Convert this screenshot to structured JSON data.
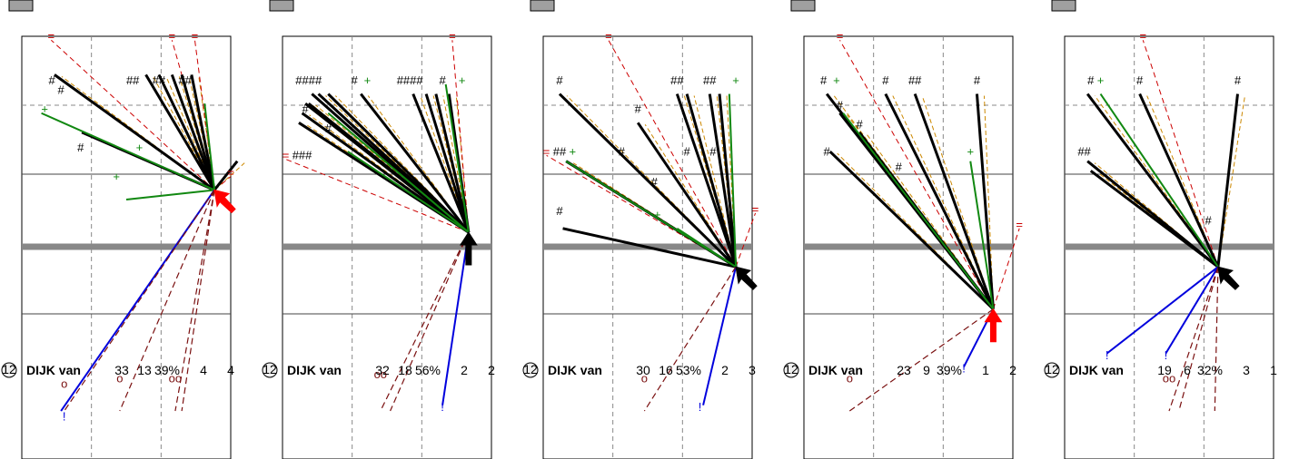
{
  "chart_data": [
    {
      "type": "other",
      "number_badge": "12",
      "name": "DIJK van",
      "stats": [
        "33",
        "13",
        "39%",
        "4",
        "4"
      ],
      "arrow_color": "#ff0000",
      "arrow_direction": "up-left",
      "labels": {
        "hash": [
          {
            "text": "#",
            "x": 0.46,
            "y": 0.95
          },
          {
            "text": "#",
            "x": 0.6,
            "y": 0.9
          },
          {
            "text": "##",
            "x": 1.7,
            "y": 0.95
          },
          {
            "text": "##",
            "x": 2.1,
            "y": 0.95
          },
          {
            "text": "##",
            "x": 2.5,
            "y": 0.95
          },
          {
            "text": "#",
            "x": 0.9,
            "y": 0.6
          }
        ],
        "plus": [
          {
            "text": "+",
            "x": 0.35,
            "y": 0.8,
            "dash": true
          },
          {
            "text": "+",
            "x": 1.8,
            "y": 0.6
          },
          {
            "text": "+",
            "x": 1.45,
            "y": 0.45
          }
        ],
        "equals": [
          {
            "text": "=",
            "x": 0.45,
            "y": 1.18
          },
          {
            "text": "=",
            "x": 2.3,
            "y": 1.18
          },
          {
            "text": "=",
            "x": 2.65,
            "y": 1.18
          },
          {
            "text": "=",
            "x": 3.2,
            "y": 0.47
          }
        ],
        "excl": [
          {
            "text": "!",
            "x": 0.65,
            "y": -0.8
          }
        ],
        "circ": [
          {
            "text": "o",
            "x": 0.65,
            "y": -0.63
          },
          {
            "text": "o",
            "x": 1.5,
            "y": -0.6
          },
          {
            "text": "oo",
            "x": 2.35,
            "y": -0.6
          }
        ]
      },
      "fan": {
        "ox": 2.95,
        "oy": 0.4,
        "lines": [
          [
            0.5,
            1.0
          ],
          [
            0.92,
            0.7
          ],
          [
            1.9,
            1.0
          ],
          [
            2.1,
            1.0
          ],
          [
            2.3,
            1.0
          ],
          [
            2.45,
            1.0
          ],
          [
            2.6,
            1.0
          ],
          [
            3.3,
            0.55
          ]
        ],
        "green": [
          [
            0.3,
            0.8
          ],
          [
            1.6,
            0.35
          ],
          [
            2.8,
            0.85
          ]
        ],
        "blue": [
          [
            0.6,
            -0.75
          ]
        ],
        "wine": [
          [
            0.65,
            -0.75
          ],
          [
            1.5,
            -0.75
          ],
          [
            2.35,
            -0.75
          ],
          [
            2.45,
            -0.75
          ]
        ]
      }
    },
    {
      "type": "other",
      "number_badge": "12",
      "name": "DIJK van",
      "stats": [
        "32",
        "18",
        "56%",
        "2",
        "2"
      ],
      "arrow_color": "#000000",
      "arrow_direction": "up",
      "labels": {
        "hash": [
          {
            "text": "####",
            "x": 0.4,
            "y": 0.95
          },
          {
            "text": "#",
            "x": 1.1,
            "y": 0.95
          },
          {
            "text": "####",
            "x": 1.95,
            "y": 0.95
          },
          {
            "text": "#",
            "x": 2.45,
            "y": 0.95
          },
          {
            "text": "#",
            "x": 0.35,
            "y": 0.8
          },
          {
            "text": "#",
            "x": 0.7,
            "y": 0.7
          },
          {
            "text": "###",
            "x": 0.3,
            "y": 0.56
          }
        ],
        "plus": [
          {
            "text": "+",
            "x": 1.3,
            "y": 0.95
          },
          {
            "text": "+",
            "x": 2.75,
            "y": 0.95
          }
        ],
        "equals": [
          {
            "text": "=",
            "x": 2.6,
            "y": 1.18
          },
          {
            "text": "=",
            "x": 0.05,
            "y": 0.56
          }
        ],
        "excl": [
          {
            "text": "!",
            "x": 2.45,
            "y": -0.75
          }
        ],
        "circ": [
          {
            "text": "oo",
            "x": 1.5,
            "y": -0.58
          }
        ]
      },
      "fan": {
        "ox": 2.85,
        "oy": 0.18,
        "lines": [
          [
            0.25,
            0.75
          ],
          [
            0.3,
            0.8
          ],
          [
            0.35,
            0.85
          ],
          [
            0.4,
            0.85
          ],
          [
            0.45,
            0.9
          ],
          [
            0.55,
            0.9
          ],
          [
            0.7,
            0.9
          ],
          [
            1.2,
            0.9
          ],
          [
            2.0,
            0.9
          ],
          [
            2.2,
            0.9
          ],
          [
            2.35,
            0.9
          ],
          [
            2.55,
            0.9
          ]
        ],
        "green": [
          [
            0.7,
            0.8
          ],
          [
            2.5,
            0.95
          ],
          [
            1.0,
            0.6
          ]
        ],
        "blue": [
          [
            2.45,
            -0.72
          ]
        ],
        "wine": [
          [
            1.5,
            -0.75
          ],
          [
            1.65,
            -0.75
          ]
        ]
      }
    },
    {
      "type": "other",
      "number_badge": "12",
      "name": "DIJK van",
      "stats": [
        "30",
        "16",
        "53%",
        "2",
        "3"
      ],
      "arrow_color": "#000000",
      "arrow_direction": "up-left",
      "labels": {
        "hash": [
          {
            "text": "#",
            "x": 0.25,
            "y": 0.95
          },
          {
            "text": "#",
            "x": 1.45,
            "y": 0.8
          },
          {
            "text": "##",
            "x": 2.05,
            "y": 0.95
          },
          {
            "text": "##",
            "x": 2.55,
            "y": 0.95
          },
          {
            "text": "##",
            "x": 0.25,
            "y": 0.58
          },
          {
            "text": "#",
            "x": 1.2,
            "y": 0.58
          },
          {
            "text": "#",
            "x": 2.2,
            "y": 0.58
          },
          {
            "text": "#",
            "x": 2.6,
            "y": 0.58
          },
          {
            "text": "#",
            "x": 1.7,
            "y": 0.42
          },
          {
            "text": "#",
            "x": 0.25,
            "y": 0.27
          }
        ],
        "plus": [
          {
            "text": "+",
            "x": 2.95,
            "y": 0.95
          },
          {
            "text": "+",
            "x": 0.45,
            "y": 0.58
          },
          {
            "text": "+",
            "x": 1.75,
            "y": 0.25
          }
        ],
        "equals": [
          {
            "text": "=",
            "x": 1.0,
            "y": 1.18
          },
          {
            "text": "=",
            "x": 0.05,
            "y": 0.58
          },
          {
            "text": "=",
            "x": 3.25,
            "y": 0.28
          }
        ],
        "excl": [
          {
            "text": "!",
            "x": 2.4,
            "y": -0.75
          }
        ],
        "circ": [
          {
            "text": "o",
            "x": 1.55,
            "y": -0.6
          }
        ]
      },
      "fan": {
        "ox": 2.95,
        "oy": 0.0,
        "lines": [
          [
            0.25,
            0.9
          ],
          [
            1.45,
            0.75
          ],
          [
            2.05,
            0.9
          ],
          [
            2.2,
            0.9
          ],
          [
            2.55,
            0.9
          ],
          [
            2.7,
            0.9
          ],
          [
            0.35,
            0.55
          ],
          [
            0.3,
            0.2
          ]
        ],
        "green": [
          [
            0.35,
            0.55
          ],
          [
            2.85,
            0.9
          ],
          [
            2.05,
            0.2
          ]
        ],
        "blue": [
          [
            2.45,
            -0.72
          ]
        ],
        "wine": [
          [
            1.55,
            -0.75
          ]
        ]
      }
    },
    {
      "type": "other",
      "number_badge": "12",
      "name": "DIJK van",
      "stats": [
        "23",
        "9",
        "39%",
        "1",
        "2"
      ],
      "arrow_color": "#ff0000",
      "arrow_direction": "up",
      "labels": {
        "hash": [
          {
            "text": "#",
            "x": 0.3,
            "y": 0.95
          },
          {
            "text": "#",
            "x": 1.25,
            "y": 0.95
          },
          {
            "text": "##",
            "x": 1.7,
            "y": 0.95
          },
          {
            "text": "#",
            "x": 2.65,
            "y": 0.95
          },
          {
            "text": "#",
            "x": 0.55,
            "y": 0.82
          },
          {
            "text": "#",
            "x": 0.85,
            "y": 0.72
          },
          {
            "text": "#",
            "x": 0.35,
            "y": 0.58
          },
          {
            "text": "#",
            "x": 1.45,
            "y": 0.5
          }
        ],
        "plus": [
          {
            "text": "+",
            "x": 0.5,
            "y": 0.95
          },
          {
            "text": "+",
            "x": 2.55,
            "y": 0.58
          }
        ],
        "equals": [
          {
            "text": "=",
            "x": 0.55,
            "y": 1.18
          },
          {
            "text": "=",
            "x": 3.3,
            "y": 0.2
          }
        ],
        "excl": [
          {
            "text": "!",
            "x": 2.45,
            "y": -0.55
          }
        ],
        "circ": [
          {
            "text": "o",
            "x": 0.7,
            "y": -0.6
          }
        ]
      },
      "fan": {
        "ox": 2.9,
        "oy": -0.22,
        "lines": [
          [
            0.35,
            0.9
          ],
          [
            0.55,
            0.8
          ],
          [
            0.85,
            0.7
          ],
          [
            1.25,
            0.9
          ],
          [
            1.7,
            0.9
          ],
          [
            2.65,
            0.9
          ],
          [
            0.4,
            0.6
          ]
        ],
        "green": [
          [
            0.6,
            0.8
          ],
          [
            2.55,
            0.55
          ]
        ],
        "blue": [
          [
            2.45,
            -0.52
          ]
        ],
        "wine": [
          [
            0.7,
            -0.75
          ]
        ]
      }
    },
    {
      "type": "other",
      "number_badge": "12",
      "name": "DIJK van",
      "stats": [
        "19",
        "6",
        "32%",
        "3",
        "1"
      ],
      "arrow_color": "#000000",
      "arrow_direction": "up-left",
      "labels": {
        "hash": [
          {
            "text": "#",
            "x": 0.4,
            "y": 0.95
          },
          {
            "text": "#",
            "x": 1.15,
            "y": 0.95
          },
          {
            "text": "#",
            "x": 2.65,
            "y": 0.95
          },
          {
            "text": "##",
            "x": 0.3,
            "y": 0.58
          },
          {
            "text": "#",
            "x": 2.2,
            "y": 0.22
          }
        ],
        "plus": [
          {
            "text": "+",
            "x": 0.55,
            "y": 0.95
          }
        ],
        "equals": [
          {
            "text": "=",
            "x": 1.2,
            "y": 1.18
          }
        ],
        "excl": [
          {
            "text": "!",
            "x": 0.65,
            "y": -0.48
          },
          {
            "text": "!",
            "x": 1.55,
            "y": -0.48
          }
        ],
        "circ": [
          {
            "text": "oo",
            "x": 1.6,
            "y": -0.6
          }
        ]
      },
      "fan": {
        "ox": 2.35,
        "oy": 0.0,
        "lines": [
          [
            0.35,
            0.9
          ],
          [
            0.35,
            0.55
          ],
          [
            0.4,
            0.5
          ],
          [
            1.15,
            0.9
          ],
          [
            2.65,
            0.9
          ]
        ],
        "green": [
          [
            0.55,
            0.9
          ]
        ],
        "blue": [
          [
            0.65,
            -0.45
          ],
          [
            1.55,
            -0.45
          ]
        ],
        "wine": [
          [
            1.6,
            -0.75
          ],
          [
            1.75,
            -0.75
          ],
          [
            2.3,
            -0.75
          ]
        ]
      }
    }
  ]
}
